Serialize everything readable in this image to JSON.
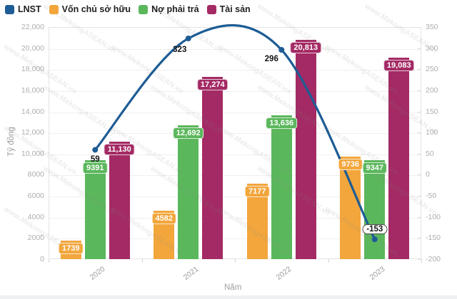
{
  "chart_data": {
    "type": "bar+line combo",
    "categories": [
      "2020",
      "2021",
      "2022",
      "2023"
    ],
    "series": [
      {
        "name": "LNST",
        "type": "line",
        "axis": "right",
        "color": "#1d5c94",
        "values": [
          59,
          323,
          296,
          -153
        ],
        "labels": [
          "59",
          "323",
          "296",
          "-153"
        ]
      },
      {
        "name": "Vốn chủ sở hữu",
        "type": "bar",
        "axis": "left",
        "color": "#f2a63c",
        "values": [
          1739,
          4582,
          7177,
          9736
        ],
        "labels": [
          "1739",
          "4582",
          "7177",
          "9736"
        ]
      },
      {
        "name": "Nợ phải trả",
        "type": "bar",
        "axis": "left",
        "color": "#5bb75c",
        "values": [
          9391,
          12692,
          13636,
          9347
        ],
        "labels": [
          "9391",
          "12,692",
          "13,636",
          "9347"
        ]
      },
      {
        "name": "Tài sản",
        "type": "bar",
        "axis": "left",
        "color": "#a32a64",
        "values": [
          11130,
          17274,
          20813,
          19083
        ],
        "labels": [
          "11,130",
          "17,274",
          "20,813",
          "19,083"
        ]
      }
    ],
    "left_axis": {
      "title": "Tỷ đồng",
      "min": 0,
      "max": 22000,
      "step": 2000,
      "tick_labels": [
        "22,000",
        "20,000",
        "18,000",
        "16,000",
        "14,000",
        "12,000",
        "10,000",
        "8000",
        "6000",
        "4000",
        "2000",
        "0"
      ]
    },
    "right_axis": {
      "min": -200,
      "max": 350,
      "step": 50,
      "tick_labels": [
        "350",
        "300",
        "250",
        "200",
        "150",
        "100",
        "50",
        "0",
        "-50",
        "-100",
        "-150",
        "-200"
      ]
    },
    "x_axis": {
      "title": "Năm"
    },
    "grid": "horizontal only",
    "legend_position": "top-left",
    "watermark": "www.MekongASEAN.vn",
    "line_value_label_style": {
      "text_color": "#141414",
      "negative_pill_bg": "#ffffff"
    },
    "bar_label_text_color": "#ffffff"
  }
}
